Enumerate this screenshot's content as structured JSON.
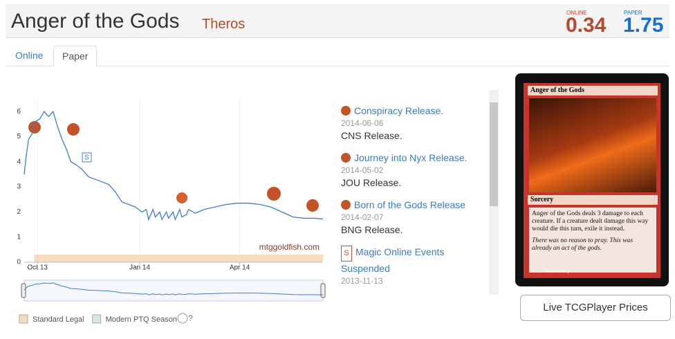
{
  "header": {
    "title": "Anger of the Gods",
    "set": "Theros",
    "online_label": "ONLINE",
    "online_price": "0.34",
    "paper_label": "PAPER",
    "paper_price": "1.75"
  },
  "tabs": [
    "Online",
    "Paper"
  ],
  "chart_data": {
    "type": "line",
    "x": [
      -12,
      -10,
      -8,
      -5,
      -2,
      2,
      6,
      10,
      14,
      18,
      22,
      26,
      30,
      34,
      40,
      46,
      52,
      58,
      64,
      70,
      76,
      82,
      88,
      94,
      98,
      100,
      104,
      106,
      110,
      112,
      116,
      118,
      122,
      124,
      128,
      130,
      134,
      136,
      142,
      150,
      160,
      170,
      180,
      190,
      200,
      210,
      220,
      230,
      240,
      250,
      257
    ],
    "values": [
      3.5,
      4.3,
      4.9,
      5.1,
      5.6,
      5.7,
      6.0,
      5.8,
      6.0,
      5.4,
      4.9,
      4.5,
      4.0,
      3.9,
      3.7,
      3.4,
      3.3,
      3.2,
      3.1,
      2.8,
      2.4,
      2.3,
      2.2,
      2.0,
      2.1,
      1.7,
      2.1,
      1.8,
      2.0,
      1.7,
      2.0,
      1.75,
      2.0,
      1.7,
      2.1,
      1.8,
      1.9,
      2.1,
      1.95,
      2.1,
      2.2,
      2.3,
      2.35,
      2.35,
      2.3,
      2.2,
      2.0,
      1.8,
      1.75,
      1.75,
      1.72
    ],
    "color": "#3a7bd5",
    "xlim": [
      -12,
      257
    ],
    "xticks": [
      {
        "value": 0,
        "label": "Oct 13"
      },
      {
        "value": 92,
        "label": "Jan 14"
      },
      {
        "value": 182,
        "label": "Apr 14"
      }
    ],
    "ylim": [
      0,
      6.5
    ],
    "yticks": [
      0,
      1,
      2,
      3,
      4,
      5,
      6
    ],
    "grid": "x",
    "watermark": "mtggoldfish.com",
    "annotation": "S",
    "bands": [
      {
        "name": "Standard Legal",
        "color": "#f5dcc0",
        "from": -3,
        "to": 257
      }
    ],
    "legend": [
      {
        "name": "Standard Legal",
        "color": "#f5dcc0"
      },
      {
        "name": "Modern PTQ Season",
        "color": "#d5e8e4"
      }
    ],
    "help": "?"
  },
  "events": [
    {
      "title": "Conspiracy Release.",
      "date": "2014-06-06",
      "desc": "CNS Release."
    },
    {
      "title": "Journey into Nyx Release.",
      "date": "2014-05-02",
      "desc": "JOU Release."
    },
    {
      "title": "Born of the Gods Release",
      "date": "2014-02-07",
      "desc": "BNG Release."
    },
    {
      "title": "Magic Online Events Suspended",
      "date": "2013-11-13"
    }
  ],
  "card": {
    "name": "Anger of the Gods",
    "type": "Sorcery",
    "rules": "Anger of the Gods deals 3 damage to each creature. If a creature dealt damage this way would die this turn, exile it instead.",
    "flavor": "There was no reason to pray. This was already an act of the gods.",
    "artist": "Noah Bradley"
  },
  "button": "Live TCGPlayer Prices"
}
